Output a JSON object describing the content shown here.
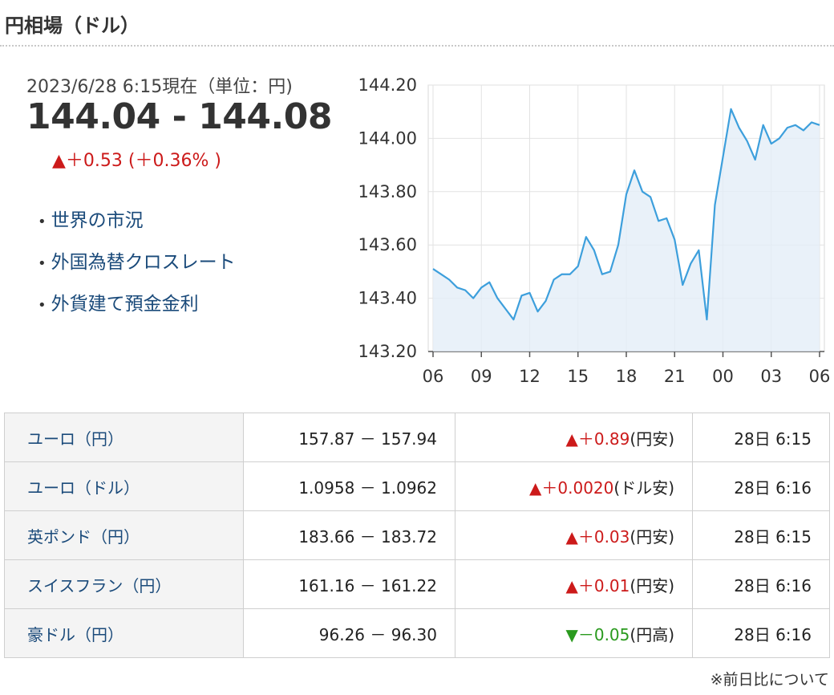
{
  "header": {
    "title": "円相場（ドル）"
  },
  "quote": {
    "asof": "2023/6/28 6:15現在（単位：円)",
    "price": "144.04 - 144.08",
    "change": "▲＋0.53 (＋0.36% )"
  },
  "links": [
    {
      "label": "世界の市況"
    },
    {
      "label": "外国為替クロスレート"
    },
    {
      "label": "外貨建て預金金利"
    }
  ],
  "chart_data": {
    "type": "area",
    "x": [
      "06",
      "06.5",
      "07",
      "07.5",
      "08",
      "08.5",
      "09",
      "09.5",
      "10",
      "10.5",
      "11",
      "11.5",
      "12",
      "12.5",
      "13",
      "13.5",
      "14",
      "14.5",
      "15",
      "15.5",
      "16",
      "16.5",
      "17",
      "17.5",
      "18",
      "18.5",
      "19",
      "19.5",
      "20",
      "20.5",
      "21",
      "21.5",
      "22",
      "22.5",
      "23",
      "23.5",
      "00",
      "00.5",
      "01",
      "01.5",
      "02",
      "02.5",
      "03",
      "03.5",
      "04",
      "04.5",
      "05",
      "05.5",
      "06"
    ],
    "series": [
      {
        "values": [
          143.51,
          143.49,
          143.47,
          143.44,
          143.43,
          143.4,
          143.44,
          143.46,
          143.4,
          143.36,
          143.32,
          143.41,
          143.42,
          143.35,
          143.39,
          143.47,
          143.49,
          143.49,
          143.52,
          143.63,
          143.58,
          143.49,
          143.5,
          143.6,
          143.79,
          143.88,
          143.8,
          143.78,
          143.69,
          143.7,
          143.62,
          143.45,
          143.53,
          143.58,
          143.32,
          143.75,
          143.93,
          144.11,
          144.04,
          143.99,
          143.92,
          144.05,
          143.98,
          144.0,
          144.04,
          144.05,
          144.03,
          144.06,
          144.05
        ]
      }
    ],
    "xticks": [
      "06",
      "09",
      "12",
      "15",
      "18",
      "21",
      "00",
      "03",
      "06"
    ],
    "yticks": [
      "144.20",
      "144.00",
      "143.80",
      "143.60",
      "143.40",
      "143.20"
    ],
    "ylim": [
      143.2,
      144.2
    ],
    "grid": true,
    "line_color": "#3d9fdc",
    "fill_color": "#e4eef8"
  },
  "table": {
    "rows": [
      {
        "name": "ユーロ（円）",
        "bid": "157.87 － 157.94",
        "chg_value": "▲＋0.89",
        "chg_note": "(円安)",
        "dir": "up",
        "time": "28日 6:15"
      },
      {
        "name": "ユーロ（ドル）",
        "bid": "1.0958 － 1.0962",
        "chg_value": "▲＋0.0020",
        "chg_note": "(ドル安)",
        "dir": "up",
        "time": "28日 6:16"
      },
      {
        "name": "英ポンド（円）",
        "bid": "183.66 － 183.72",
        "chg_value": "▲＋0.03",
        "chg_note": "(円安)",
        "dir": "up",
        "time": "28日 6:15"
      },
      {
        "name": "スイスフラン（円）",
        "bid": "161.16 － 161.22",
        "chg_value": "▲＋0.01",
        "chg_note": "(円安)",
        "dir": "up",
        "time": "28日 6:16"
      },
      {
        "name": "豪ドル（円）",
        "bid": "96.26 － 96.30",
        "chg_value": "▼－0.05",
        "chg_note": "(円高)",
        "dir": "down",
        "time": "28日 6:16"
      }
    ]
  },
  "footnote": "※前日比について"
}
